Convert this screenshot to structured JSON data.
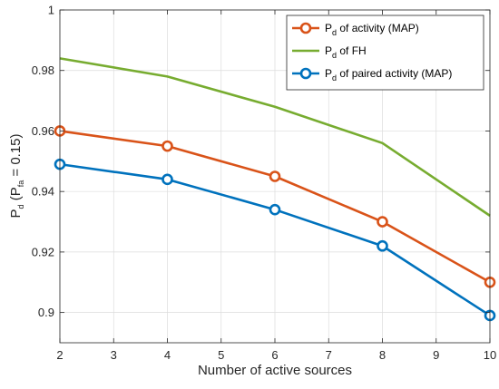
{
  "chart_data": {
    "type": "line",
    "x": [
      2,
      4,
      6,
      8,
      10
    ],
    "xlabel": "Number of active sources",
    "ylabel": {
      "main": "P",
      "sub": "d",
      "mid": " (P",
      "sub2": "fa",
      "tail": " = 0.15)"
    },
    "xlim": [
      2,
      10
    ],
    "ylim": [
      0.89,
      1.0
    ],
    "xticks": [
      2,
      3,
      4,
      5,
      6,
      7,
      8,
      9,
      10
    ],
    "xtick_labels": [
      "2",
      "3",
      "4",
      "5",
      "6",
      "7",
      "8",
      "9",
      "10"
    ],
    "yticks": [
      0.9,
      0.92,
      0.94,
      0.96,
      0.98,
      1.0
    ],
    "ytick_labels": [
      "0.9",
      "0.92",
      "0.94",
      "0.96",
      "0.98",
      "1"
    ],
    "grid": true,
    "legend_position": "top-right",
    "series": [
      {
        "label": {
          "main": "P",
          "sub": "d",
          "rest": " of activity (MAP)"
        },
        "color": "#D95319",
        "marker": "circle",
        "values": [
          0.96,
          0.955,
          0.945,
          0.93,
          0.91
        ]
      },
      {
        "label": {
          "main": "P",
          "sub": "d",
          "rest": " of FH"
        },
        "color": "#77AC30",
        "marker": "none",
        "values": [
          0.984,
          0.978,
          0.968,
          0.956,
          0.932
        ]
      },
      {
        "label": {
          "main": "P",
          "sub": "d",
          "rest": " of paired activity (MAP)"
        },
        "color": "#0072BD",
        "marker": "circle",
        "values": [
          0.949,
          0.944,
          0.934,
          0.922,
          0.899
        ]
      }
    ]
  }
}
